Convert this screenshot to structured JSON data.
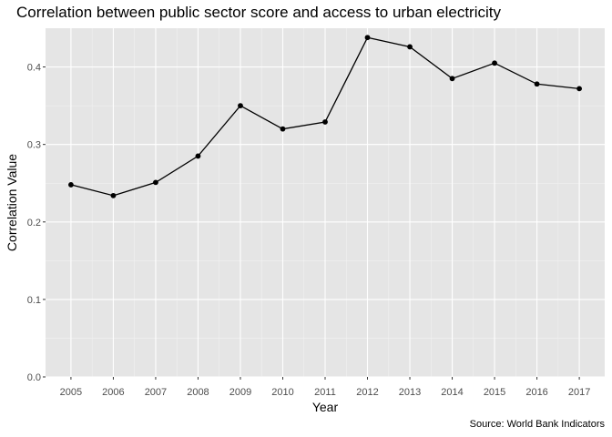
{
  "chart_data": {
    "type": "line",
    "title": "Correlation between public sector score and access to urban electricity",
    "xlabel": "Year",
    "ylabel": "Correlation Value",
    "caption": "Source: World Bank Indicators",
    "x": [
      2005,
      2006,
      2007,
      2008,
      2009,
      2010,
      2011,
      2012,
      2013,
      2014,
      2015,
      2016,
      2017
    ],
    "series": [
      {
        "values": [
          0.248,
          0.234,
          0.251,
          0.285,
          0.35,
          0.32,
          0.329,
          0.438,
          0.426,
          0.385,
          0.405,
          0.378,
          0.372
        ]
      }
    ],
    "xlim": [
      2004.4,
      2017.6
    ],
    "ylim": [
      -0.0,
      0.45
    ],
    "yticks": [
      "0.0",
      "0.1",
      "0.2",
      "0.3",
      "0.4"
    ],
    "ytick_values": [
      0.0,
      0.1,
      0.2,
      0.3,
      0.4
    ],
    "xticks": [
      "2005",
      "2006",
      "2007",
      "2008",
      "2009",
      "2010",
      "2011",
      "2012",
      "2013",
      "2014",
      "2015",
      "2016",
      "2017"
    ],
    "grid": true,
    "panel_color": "#e5e5e5",
    "line_color": "#000000"
  }
}
